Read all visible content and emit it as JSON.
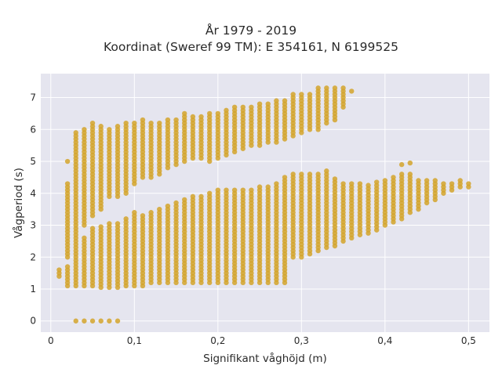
{
  "chart_data": {
    "type": "scatter",
    "title_line1": "År 1979 - 2019",
    "title_line2": "Koordinat (Sweref 99 TM): E 354161, N 6199525",
    "xlabel": "Signifikant våghöjd (m)",
    "ylabel": "Vågperiod (s)",
    "xlim": [
      -0.012,
      0.525
    ],
    "ylim": [
      -0.35,
      7.75
    ],
    "x_ticks": [
      0,
      0.1,
      0.2,
      0.3,
      0.4,
      0.5
    ],
    "x_tick_labels": [
      "0",
      "0,1",
      "0,2",
      "0,3",
      "0,4",
      "0,5"
    ],
    "y_ticks": [
      0,
      1,
      2,
      3,
      4,
      5,
      6,
      7
    ],
    "y_tick_labels": [
      "0",
      "1",
      "2",
      "3",
      "4",
      "5",
      "6",
      "7"
    ],
    "grid": true,
    "marker_color": "#d4a52b",
    "marker_color_light": "#ddb24a",
    "columns": [
      {
        "x": 0.01,
        "ranges": [
          [
            1.4,
            1.65
          ]
        ]
      },
      {
        "x": 0.02,
        "ranges": [
          [
            1.1,
            1.7
          ],
          [
            2.0,
            2.8
          ],
          [
            2.9,
            4.3
          ],
          [
            5.0,
            5.0
          ]
        ]
      },
      {
        "x": 0.03,
        "ranges": [
          [
            0.0,
            0.0
          ],
          [
            1.1,
            2.3
          ],
          [
            2.4,
            3.6
          ],
          [
            3.7,
            5.9
          ]
        ]
      },
      {
        "x": 0.04,
        "ranges": [
          [
            0.0,
            0.0
          ],
          [
            1.1,
            2.6
          ],
          [
            3.0,
            6.0
          ]
        ]
      },
      {
        "x": 0.05,
        "ranges": [
          [
            0.0,
            0.0
          ],
          [
            1.1,
            2.9
          ],
          [
            3.3,
            6.2
          ]
        ]
      },
      {
        "x": 0.06,
        "ranges": [
          [
            0.0,
            0.0
          ],
          [
            1.05,
            3.0
          ],
          [
            3.5,
            6.15
          ]
        ]
      },
      {
        "x": 0.07,
        "ranges": [
          [
            0.0,
            0.0
          ],
          [
            1.05,
            3.1
          ],
          [
            3.9,
            6.05
          ]
        ]
      },
      {
        "x": 0.08,
        "ranges": [
          [
            0.0,
            0.0
          ],
          [
            1.05,
            3.1
          ],
          [
            3.9,
            6.1
          ]
        ]
      },
      {
        "x": 0.09,
        "ranges": [
          [
            1.1,
            3.2
          ],
          [
            4.0,
            6.2
          ]
        ]
      },
      {
        "x": 0.1,
        "ranges": [
          [
            1.1,
            3.4
          ],
          [
            4.3,
            6.25
          ]
        ]
      },
      {
        "x": 0.11,
        "ranges": [
          [
            1.1,
            3.35
          ],
          [
            4.5,
            6.3
          ]
        ]
      },
      {
        "x": 0.12,
        "ranges": [
          [
            1.2,
            3.45
          ],
          [
            4.5,
            6.2
          ]
        ]
      },
      {
        "x": 0.13,
        "ranges": [
          [
            1.2,
            3.5
          ],
          [
            4.6,
            6.25
          ]
        ]
      },
      {
        "x": 0.14,
        "ranges": [
          [
            1.2,
            3.6
          ],
          [
            4.8,
            6.3
          ]
        ]
      },
      {
        "x": 0.15,
        "ranges": [
          [
            1.2,
            3.7
          ],
          [
            4.9,
            6.3
          ]
        ]
      },
      {
        "x": 0.16,
        "ranges": [
          [
            1.2,
            3.8
          ],
          [
            5.0,
            6.55
          ]
        ]
      },
      {
        "x": 0.17,
        "ranges": [
          [
            1.2,
            3.9
          ],
          [
            5.1,
            6.4
          ]
        ]
      },
      {
        "x": 0.18,
        "ranges": [
          [
            1.2,
            3.9
          ],
          [
            5.1,
            6.45
          ]
        ]
      },
      {
        "x": 0.19,
        "ranges": [
          [
            1.2,
            4.0
          ],
          [
            5.0,
            6.5
          ]
        ]
      },
      {
        "x": 0.2,
        "ranges": [
          [
            1.2,
            4.1
          ],
          [
            5.1,
            6.55
          ]
        ]
      },
      {
        "x": 0.21,
        "ranges": [
          [
            1.2,
            4.1
          ],
          [
            5.2,
            6.6
          ]
        ]
      },
      {
        "x": 0.22,
        "ranges": [
          [
            1.2,
            4.15
          ],
          [
            5.3,
            6.7
          ]
        ]
      },
      {
        "x": 0.23,
        "ranges": [
          [
            1.2,
            4.1
          ],
          [
            5.4,
            6.7
          ]
        ]
      },
      {
        "x": 0.24,
        "ranges": [
          [
            1.2,
            4.15
          ],
          [
            5.5,
            6.75
          ]
        ]
      },
      {
        "x": 0.25,
        "ranges": [
          [
            1.2,
            4.2
          ],
          [
            5.5,
            6.8
          ]
        ]
      },
      {
        "x": 0.26,
        "ranges": [
          [
            1.2,
            4.25
          ],
          [
            5.6,
            6.85
          ]
        ]
      },
      {
        "x": 0.27,
        "ranges": [
          [
            1.2,
            4.3
          ],
          [
            5.6,
            6.9
          ]
        ]
      },
      {
        "x": 0.28,
        "ranges": [
          [
            1.2,
            4.5
          ],
          [
            5.7,
            6.95
          ]
        ]
      },
      {
        "x": 0.29,
        "ranges": [
          [
            2.0,
            4.6
          ],
          [
            5.8,
            7.1
          ]
        ]
      },
      {
        "x": 0.3,
        "ranges": [
          [
            2.0,
            4.6
          ],
          [
            5.9,
            7.15
          ]
        ]
      },
      {
        "x": 0.31,
        "ranges": [
          [
            2.1,
            4.65
          ],
          [
            6.0,
            7.1
          ]
        ]
      },
      {
        "x": 0.32,
        "ranges": [
          [
            2.2,
            4.6
          ],
          [
            6.0,
            7.3
          ]
        ]
      },
      {
        "x": 0.33,
        "ranges": [
          [
            2.3,
            4.75
          ],
          [
            6.2,
            7.3
          ]
        ]
      },
      {
        "x": 0.34,
        "ranges": [
          [
            2.35,
            4.5
          ],
          [
            6.3,
            7.35
          ]
        ]
      },
      {
        "x": 0.35,
        "ranges": [
          [
            2.5,
            4.3
          ],
          [
            6.7,
            7.3
          ]
        ]
      },
      {
        "x": 0.36,
        "ranges": [
          [
            2.6,
            4.3
          ],
          [
            7.2,
            7.2
          ]
        ]
      },
      {
        "x": 0.37,
        "ranges": [
          [
            2.7,
            4.3
          ]
        ]
      },
      {
        "x": 0.38,
        "ranges": [
          [
            2.75,
            4.3
          ]
        ]
      },
      {
        "x": 0.39,
        "ranges": [
          [
            2.85,
            4.4
          ]
        ]
      },
      {
        "x": 0.4,
        "ranges": [
          [
            3.0,
            4.45
          ]
        ]
      },
      {
        "x": 0.41,
        "ranges": [
          [
            3.1,
            4.5
          ]
        ]
      },
      {
        "x": 0.42,
        "ranges": [
          [
            3.2,
            4.6
          ],
          [
            4.9,
            4.95
          ]
        ]
      },
      {
        "x": 0.43,
        "ranges": [
          [
            3.4,
            4.6
          ],
          [
            4.95,
            4.95
          ]
        ]
      },
      {
        "x": 0.44,
        "ranges": [
          [
            3.5,
            4.4
          ]
        ]
      },
      {
        "x": 0.45,
        "ranges": [
          [
            3.7,
            4.4
          ]
        ]
      },
      {
        "x": 0.46,
        "ranges": [
          [
            3.8,
            4.4
          ]
        ]
      },
      {
        "x": 0.47,
        "ranges": [
          [
            4.0,
            4.3
          ]
        ]
      },
      {
        "x": 0.48,
        "ranges": [
          [
            4.1,
            4.35
          ]
        ]
      },
      {
        "x": 0.49,
        "ranges": [
          [
            4.2,
            4.4
          ]
        ]
      },
      {
        "x": 0.5,
        "ranges": [
          [
            4.2,
            4.3
          ]
        ]
      }
    ]
  }
}
